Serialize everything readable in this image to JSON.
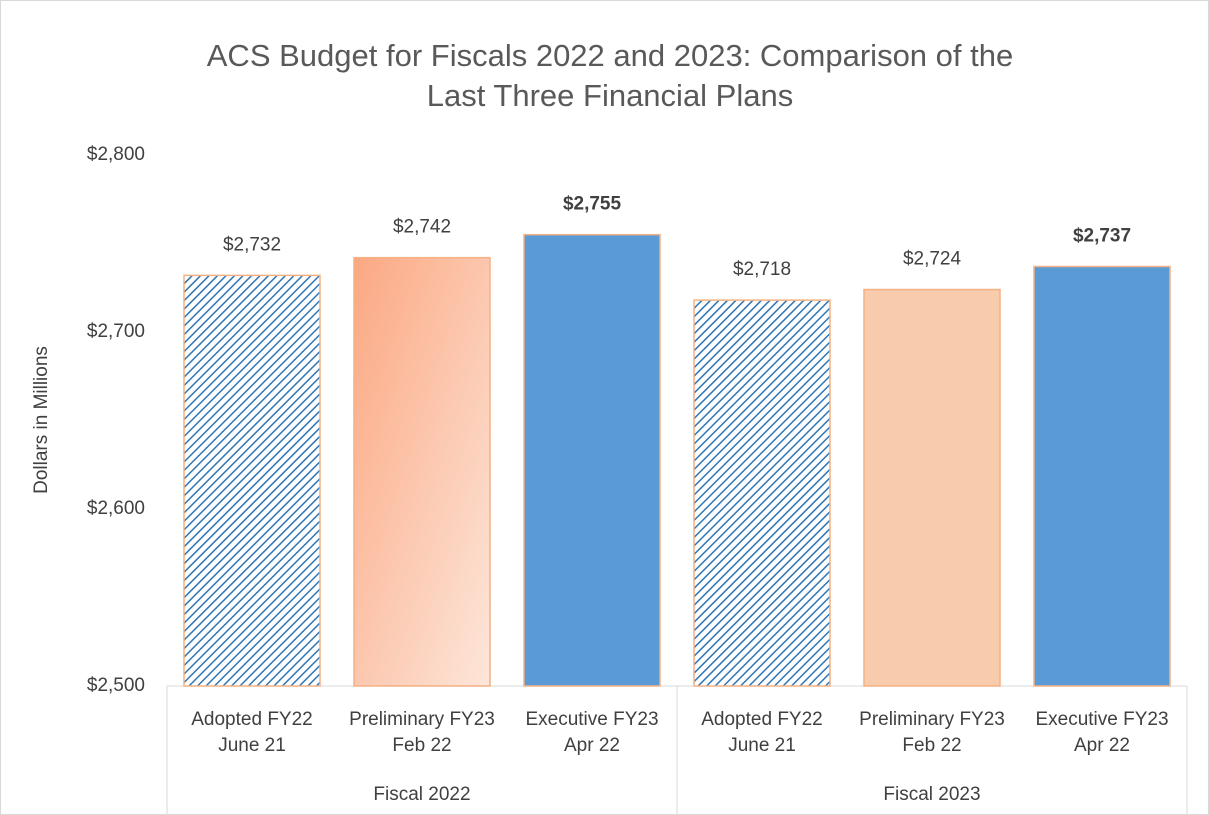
{
  "chart_data": {
    "type": "bar",
    "title": "ACS Budget for Fiscals 2022 and 2023: Comparison of the Last Three Financial Plans",
    "y_label": "Dollars in Millions",
    "categories": [
      [
        "Adopted FY22",
        "June 21"
      ],
      [
        "Preliminary FY23",
        "Feb 22"
      ],
      [
        "Executive FY23",
        "Apr 22"
      ],
      [
        "Adopted FY22",
        "June 21"
      ],
      [
        "Preliminary FY23",
        "Feb 22"
      ],
      [
        "Executive FY23",
        "Apr 22"
      ]
    ],
    "groups": [
      "Fiscal 2022",
      "Fiscal 2023"
    ],
    "values": [
      2732,
      2742,
      2755,
      2718,
      2724,
      2737
    ],
    "value_labels": [
      "$2,732",
      "$2,742",
      "$2,755",
      "$2,718",
      "$2,724",
      "$2,737"
    ],
    "value_label_bold": [
      false,
      false,
      true,
      false,
      false,
      true
    ],
    "bar_styles": [
      "hatch",
      "gradient",
      "solid",
      "hatch",
      "solid",
      "solid"
    ],
    "colors": [
      "#2e75b6",
      "#fba882",
      "#5b9bd5",
      "#2e75b6",
      "#f8cbad",
      "#5b9bd5"
    ],
    "border_color": "#f4b183",
    "ylim": [
      2500,
      2800
    ],
    "yticks": [
      {
        "value": 2500,
        "label": "$2,500"
      },
      {
        "value": 2600,
        "label": "$2,600"
      },
      {
        "value": 2700,
        "label": "$2,700"
      },
      {
        "value": 2800,
        "label": "$2,800"
      }
    ],
    "grid": false
  }
}
